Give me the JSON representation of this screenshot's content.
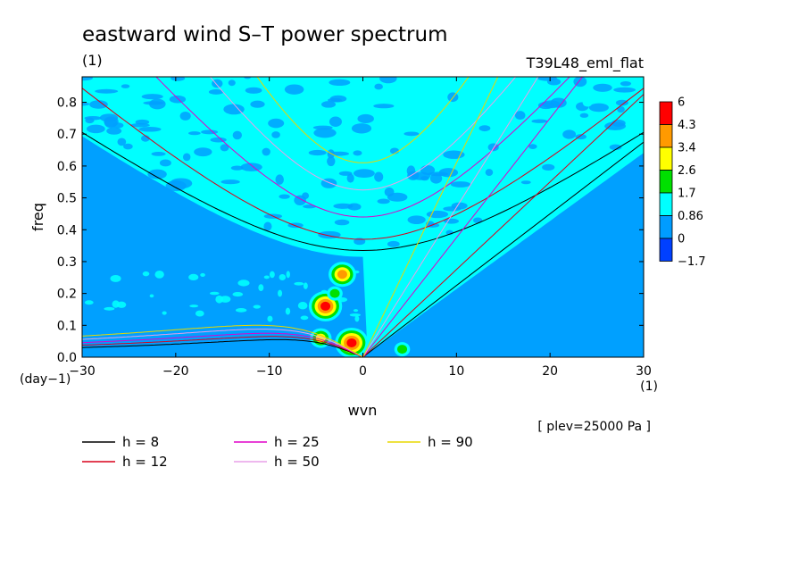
{
  "chart_data": {
    "type": "heatmap",
    "title": "eastward wind S–T power spectrum",
    "units_label": "(1)",
    "run_label": "T39L48_eml_flat",
    "xlabel": "wvn",
    "ylabel": "freq",
    "x_units": "(1)",
    "y_units": "(day−1)",
    "xlim": [
      -30,
      30
    ],
    "ylim": [
      0,
      0.88
    ],
    "x_ticks": [
      {
        "value": -30,
        "label": "−30"
      },
      {
        "value": -20,
        "label": "−20"
      },
      {
        "value": -10,
        "label": "−10"
      },
      {
        "value": 0,
        "label": "0"
      },
      {
        "value": 10,
        "label": "10"
      },
      {
        "value": 20,
        "label": "20"
      },
      {
        "value": 30,
        "label": "30"
      }
    ],
    "y_ticks": [
      {
        "value": 0.0,
        "label": "0.0"
      },
      {
        "value": 0.1,
        "label": "0.1"
      },
      {
        "value": 0.2,
        "label": "0.2"
      },
      {
        "value": 0.3,
        "label": "0.3"
      },
      {
        "value": 0.4,
        "label": "0.4"
      },
      {
        "value": 0.5,
        "label": "0.5"
      },
      {
        "value": 0.6,
        "label": "0.6"
      },
      {
        "value": 0.7,
        "label": "0.7"
      },
      {
        "value": 0.8,
        "label": "0.8"
      }
    ],
    "colorbar": {
      "levels": [
        "6",
        "4.3",
        "3.4",
        "2.6",
        "1.7",
        "0.86",
        "0",
        "−1.7"
      ],
      "colors": [
        "#ff0000",
        "#ff9a00",
        "#ffff00",
        "#00e000",
        "#00ffff",
        "#009cff",
        "#0040ff"
      ]
    },
    "background_colors": {
      "low": "#00a0ff",
      "mid": "#00ffff"
    },
    "annotation": "[ plev=25000 Pa ]",
    "blobs": [
      {
        "x": -1.2,
        "y": 0.045,
        "level": 6
      },
      {
        "x": -4.0,
        "y": 0.16,
        "level": 6
      },
      {
        "x": -2.2,
        "y": 0.26,
        "level": 4.3
      },
      {
        "x": -4.5,
        "y": 0.06,
        "level": 3.4
      },
      {
        "x": -3.0,
        "y": 0.2,
        "level": 2.6
      },
      {
        "x": 4.2,
        "y": 0.025,
        "level": 2.6
      },
      {
        "x": 18.5,
        "y": 0.76,
        "level": 1.7
      },
      {
        "x": 24.0,
        "y": 0.8,
        "level": 1.7
      }
    ],
    "dispersion_curves": [
      {
        "label": "h = 8",
        "h": 8,
        "color": "#000000"
      },
      {
        "label": "h = 12",
        "h": 12,
        "color": "#d8001a"
      },
      {
        "label": "h = 25",
        "h": 25,
        "color": "#e000c8"
      },
      {
        "label": "h = 50",
        "h": 50,
        "color": "#e8a0e8"
      },
      {
        "label": "h = 90",
        "h": 90,
        "color": "#e8d800"
      }
    ],
    "inertia_gravity_minimum": [
      {
        "h": 8,
        "freq": 0.335
      },
      {
        "h": 12,
        "freq": 0.37
      },
      {
        "h": 25,
        "freq": 0.44
      },
      {
        "h": 50,
        "freq": 0.525
      },
      {
        "h": 90,
        "freq": 0.61
      }
    ],
    "kelvin_slope_per_wvn": [
      {
        "h": 8,
        "slope": 0.0225
      },
      {
        "h": 12,
        "slope": 0.0275
      },
      {
        "h": 25,
        "slope": 0.0375
      },
      {
        "h": 50,
        "slope": 0.047
      },
      {
        "h": 90,
        "slope": 0.061
      }
    ],
    "rossby_peak": [
      {
        "h": 8,
        "freq": 0.055
      },
      {
        "h": 12,
        "freq": 0.065
      },
      {
        "h": 25,
        "freq": 0.075
      },
      {
        "h": 50,
        "freq": 0.088
      },
      {
        "h": 90,
        "freq": 0.1
      }
    ]
  }
}
